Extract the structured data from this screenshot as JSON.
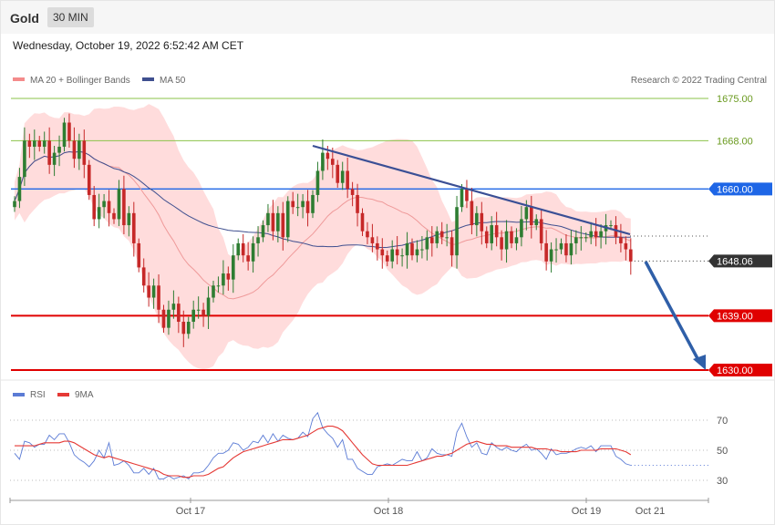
{
  "header": {
    "instrument": "Gold",
    "timeframe": "30 MIN",
    "datetime": "Wednesday, October 19, 2022 6:52:42 AM CET"
  },
  "legend": {
    "ma20": "MA 20 + Bollinger Bands",
    "ma50": "MA 50",
    "credit": "Research © 2022 Trading Central",
    "rsi": "RSI",
    "rsi_ma": "9MA"
  },
  "colors": {
    "candle_up": "#2e7d32",
    "candle_down": "#c62828",
    "bands": "#ffd6d6",
    "ma20": "#ef9a9a",
    "ma50": "#3f4f8f",
    "trend": "#3a4f95",
    "arrow": "#2f5fa8",
    "resistance_green": "#8bc34a",
    "level_blue": "#1e66e6",
    "support_red": "#e00000",
    "rsi": "#5b7bd5",
    "rsi_ma": "#e53935"
  },
  "chart_data": [
    {
      "type": "candlestick",
      "ylim": [
        1624,
        1680
      ],
      "x_tick_labels": [
        "Oct 17",
        "Oct 18",
        "Oct 19",
        "Oct 21"
      ],
      "levels": [
        {
          "label": "1675.00",
          "value": 1675.0,
          "kind": "resistance"
        },
        {
          "label": "1668.00",
          "value": 1668.0,
          "kind": "resistance"
        },
        {
          "label": "1660.00",
          "value": 1660.0,
          "kind": "pivot"
        },
        {
          "label": "1648.06",
          "value": 1648.06,
          "kind": "last"
        },
        {
          "label": "1639.00",
          "value": 1639.0,
          "kind": "support"
        },
        {
          "label": "1630.00",
          "value": 1630.0,
          "kind": "support"
        }
      ],
      "close": [
        1658,
        1662,
        1668,
        1667,
        1668,
        1667,
        1668,
        1664,
        1666,
        1667,
        1671,
        1668,
        1665,
        1668,
        1664,
        1659,
        1655,
        1657,
        1658,
        1656,
        1655,
        1660,
        1654,
        1656,
        1651,
        1647,
        1644,
        1642,
        1644,
        1640,
        1637,
        1640,
        1641,
        1638,
        1636,
        1638,
        1640,
        1640,
        1639,
        1642,
        1644,
        1644,
        1646,
        1645,
        1649,
        1651,
        1649,
        1648,
        1651,
        1652,
        1654,
        1656,
        1653,
        1656,
        1652,
        1658,
        1657,
        1657,
        1658,
        1656,
        1659,
        1663,
        1666,
        1665,
        1664,
        1661,
        1663,
        1660,
        1659,
        1656,
        1653,
        1652,
        1651,
        1650,
        1649,
        1648,
        1650,
        1649,
        1649,
        1651,
        1649,
        1650,
        1650,
        1652,
        1651,
        1653,
        1652,
        1652,
        1649,
        1657,
        1660,
        1658,
        1654,
        1656,
        1653,
        1651,
        1654,
        1652,
        1650,
        1653,
        1651,
        1652,
        1655,
        1657,
        1654,
        1655,
        1651,
        1648,
        1650,
        1650,
        1651,
        1649,
        1651,
        1652,
        1652,
        1652,
        1653,
        1652,
        1653,
        1654,
        1654,
        1652,
        1651,
        1650,
        1648
      ]
    },
    {
      "type": "line",
      "ylim": [
        20,
        80
      ],
      "y_ticks": [
        30,
        50,
        70
      ],
      "series": [
        {
          "name": "RSI",
          "values": [
            48,
            44,
            56,
            55,
            52,
            54,
            54,
            60,
            57,
            61,
            61,
            55,
            47,
            44,
            42,
            39,
            43,
            50,
            45,
            55,
            40,
            41,
            43,
            40,
            35,
            35,
            38,
            34,
            38,
            31,
            31,
            33,
            31,
            32,
            33,
            31,
            35,
            35,
            36,
            40,
            45,
            48,
            48,
            50,
            55,
            54,
            50,
            52,
            56,
            55,
            60,
            55,
            61,
            56,
            60,
            58,
            57,
            58,
            62,
            59,
            71,
            75,
            65,
            61,
            58,
            52,
            57,
            44,
            44,
            38,
            36,
            34,
            34,
            39,
            40,
            41,
            40,
            42,
            44,
            43,
            43,
            49,
            43,
            45,
            51,
            48,
            47,
            47,
            46,
            62,
            68,
            59,
            52,
            55,
            48,
            47,
            55,
            52,
            50,
            52,
            50,
            49,
            52,
            54,
            50,
            51,
            48,
            44,
            51,
            47,
            48,
            48,
            49,
            51,
            52,
            51,
            53,
            49,
            53,
            53,
            53,
            46,
            44,
            41,
            40
          ]
        },
        {
          "name": "9MA",
          "values": [
            53,
            53,
            53,
            53,
            53,
            54,
            55,
            55,
            55,
            55,
            56,
            56,
            55,
            53,
            51,
            49,
            47,
            46,
            45,
            46,
            45,
            44,
            43,
            42,
            41,
            40,
            39,
            38,
            37,
            36,
            34,
            33,
            33,
            33,
            32,
            32,
            33,
            33,
            33,
            34,
            36,
            38,
            39,
            42,
            45,
            47,
            49,
            50,
            51,
            52,
            53,
            54,
            55,
            56,
            57,
            57,
            57,
            58,
            59,
            60,
            62,
            64,
            65,
            66,
            66,
            65,
            63,
            59,
            55,
            51,
            47,
            44,
            41,
            40,
            40,
            40,
            40,
            40,
            40,
            40,
            41,
            42,
            43,
            44,
            45,
            46,
            46,
            47,
            48,
            50,
            52,
            54,
            55,
            56,
            55,
            54,
            54,
            53,
            53,
            53,
            52,
            52,
            52,
            52,
            52,
            51,
            51,
            51,
            50,
            50,
            49,
            49,
            49,
            49,
            50,
            50,
            50,
            50,
            51,
            51,
            51,
            51,
            50,
            49,
            47
          ]
        }
      ]
    }
  ]
}
